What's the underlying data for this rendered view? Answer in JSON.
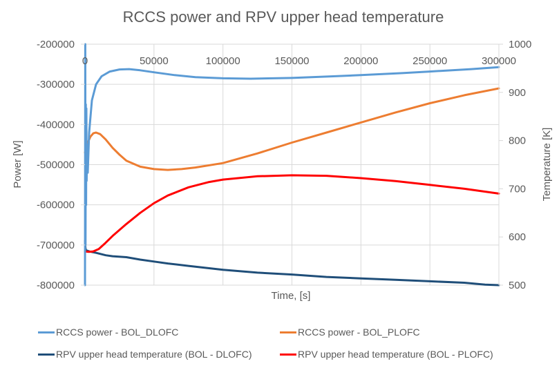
{
  "chart_data": {
    "type": "line",
    "title": "RCCS power and RPV upper head temperature",
    "xlabel": "Time, [s]",
    "ylabel": "Power [W]",
    "y2label": "Temperature [K]",
    "xlim": [
      0,
      300000
    ],
    "ylim": [
      -800000,
      -200000
    ],
    "y2lim": [
      500,
      1000
    ],
    "x_ticks": [
      "0",
      "50000",
      "100000",
      "150000",
      "200000",
      "250000",
      "300000"
    ],
    "x_tick_values": [
      0,
      50000,
      100000,
      150000,
      200000,
      250000,
      300000
    ],
    "y_ticks": [
      "-200000",
      "-300000",
      "-400000",
      "-500000",
      "-600000",
      "-700000",
      "-800000"
    ],
    "y_tick_values": [
      -200000,
      -300000,
      -400000,
      -500000,
      -600000,
      -700000,
      -800000
    ],
    "y2_ticks": [
      "1000",
      "900",
      "800",
      "700",
      "600",
      "500"
    ],
    "y2_tick_values": [
      1000,
      900,
      800,
      700,
      600,
      500
    ],
    "grid": true,
    "legend_position": "bottom",
    "series": [
      {
        "name": "RCCS power - BOL_DLOFC",
        "axis": "left",
        "color": "#5B9BD5",
        "x": [
          0,
          200,
          400,
          600,
          800,
          1000,
          1200,
          1500,
          2000,
          3000,
          5000,
          8000,
          12000,
          18000,
          25000,
          32000,
          40000,
          50000,
          65000,
          80000,
          100000,
          120000,
          150000,
          180000,
          200000,
          230000,
          250000,
          280000,
          300000
        ],
        "values": [
          -800000,
          -200000,
          -700000,
          -350000,
          -600000,
          -360000,
          -540000,
          -450000,
          -520000,
          -420000,
          -340000,
          -300000,
          -280000,
          -268000,
          -263000,
          -262000,
          -265000,
          -270000,
          -277000,
          -282000,
          -285000,
          -286000,
          -284000,
          -280000,
          -277000,
          -272000,
          -268000,
          -262000,
          -257000
        ]
      },
      {
        "name": "RCCS power - BOL_PLOFC",
        "axis": "left",
        "color": "#ED7D31",
        "x": [
          0,
          2000,
          4000,
          6000,
          8000,
          11000,
          15000,
          20000,
          25000,
          30000,
          40000,
          50000,
          60000,
          70000,
          80000,
          100000,
          125000,
          150000,
          175000,
          200000,
          225000,
          250000,
          275000,
          300000
        ],
        "values": [
          -470000,
          -445000,
          -430000,
          -422000,
          -420000,
          -424000,
          -437000,
          -458000,
          -475000,
          -490000,
          -505000,
          -511000,
          -513000,
          -511000,
          -507000,
          -496000,
          -472000,
          -445000,
          -420000,
          -395000,
          -370000,
          -347000,
          -327000,
          -310000
        ]
      },
      {
        "name": "RPV upper head  temperature (BOL - DLOFC)",
        "axis": "right",
        "color": "#1F4E79",
        "x": [
          0,
          300,
          600,
          1000,
          3000,
          8000,
          15000,
          20000,
          30000,
          40000,
          50000,
          60000,
          75000,
          100000,
          125000,
          150000,
          175000,
          200000,
          225000,
          250000,
          275000,
          290000,
          300000
        ],
        "values": [
          592,
          578,
          573,
          572,
          570,
          567,
          562,
          560,
          558,
          553,
          549,
          545,
          540,
          532,
          526,
          522,
          517,
          514,
          511,
          508,
          505,
          501,
          500
        ]
      },
      {
        "name": "RPV upper head  temperature (BOL - PLOFC)",
        "axis": "right",
        "color": "#FF0000",
        "x": [
          0,
          3000,
          6000,
          10000,
          15000,
          20000,
          30000,
          40000,
          50000,
          60000,
          75000,
          90000,
          100000,
          125000,
          150000,
          175000,
          200000,
          225000,
          250000,
          275000,
          300000
        ],
        "values": [
          570,
          569,
          570,
          575,
          588,
          602,
          627,
          650,
          670,
          686,
          703,
          714,
          719,
          726,
          728,
          727,
          722,
          716,
          708,
          700,
          690
        ]
      }
    ]
  }
}
